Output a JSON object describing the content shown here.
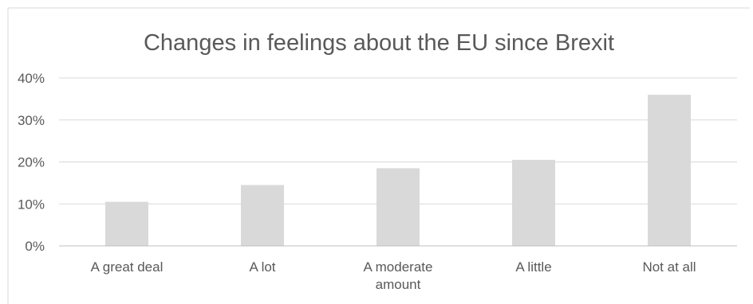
{
  "chart_data": {
    "type": "bar",
    "title": "Changes in feelings about the EU since Brexit",
    "xlabel": "",
    "ylabel": "",
    "categories": [
      "A great deal",
      "A lot",
      "A moderate amount",
      "A little",
      "Not at all"
    ],
    "category_lines": [
      [
        "A great deal"
      ],
      [
        "A lot"
      ],
      [
        "A moderate",
        "amount"
      ],
      [
        "A little"
      ],
      [
        "Not at all"
      ]
    ],
    "values": [
      10.5,
      14.5,
      18.5,
      20.5,
      36
    ],
    "ylim": [
      0,
      40
    ],
    "yticks": [
      0,
      10,
      20,
      30,
      40
    ],
    "ytick_labels": [
      "0%",
      "10%",
      "20%",
      "30%",
      "40%"
    ],
    "grid": true,
    "legend": "none",
    "colors": {
      "bar": "#d9d9d9",
      "grid": "#d9d9d9",
      "axis": "#bfbfbf",
      "text": "#595959",
      "frame": "#d9d9d9"
    }
  }
}
